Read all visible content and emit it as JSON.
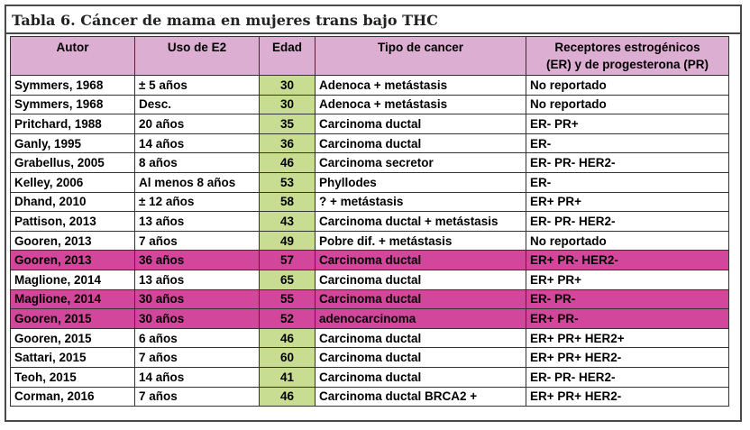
{
  "title": "Tabla 6. Cáncer de mama en mujeres trans bajo THC",
  "headers": {
    "autor": "Autor",
    "uso": "Uso de E2",
    "edad": "Edad",
    "tipo": "Tipo de cancer",
    "receptores_line1": "Receptores estrogénicos",
    "receptores_line2": "(ER) y de progesterona (PR)"
  },
  "colors": {
    "header_bg": "#dcaed2",
    "edad_bg": "#c9dd92",
    "highlight_bg": "#d2479b"
  },
  "rows": [
    {
      "autor": "Symmers, 1968",
      "uso": "± 5 años",
      "edad": "30",
      "tipo": "Adenoca  + metástasis",
      "receptores": "No reportado",
      "highlight": false
    },
    {
      "autor": "Symmers, 1968",
      "uso": "Desc.",
      "edad": "30",
      "tipo": "Adenoca  + metástasis",
      "receptores": "No reportado",
      "highlight": false
    },
    {
      "autor": "Pritchard,  1988",
      "uso": "20 años",
      "edad": "35",
      "tipo": "Carcinoma ductal",
      "receptores": "ER- PR+",
      "highlight": false
    },
    {
      "autor": "Ganly,  1995",
      "uso": "14 años",
      "edad": "36",
      "tipo": "Carcinoma ductal",
      "receptores": "ER-",
      "highlight": false
    },
    {
      "autor": "Grabellus, 2005",
      "uso": "8 años",
      "edad": "46",
      "tipo": "Carcinoma secretor",
      "receptores": "ER- PR- HER2-",
      "highlight": false
    },
    {
      "autor": "Kelley, 2006",
      "uso": "Al menos 8 años",
      "edad": "53",
      "tipo": "Phyllodes",
      "receptores": "ER-",
      "highlight": false
    },
    {
      "autor": "Dhand, 2010",
      "uso": "± 12 años",
      "edad": "58",
      "tipo": "? + metástasis",
      "receptores": "ER+ PR+",
      "highlight": false
    },
    {
      "autor": "Pattison, 2013",
      "uso": "13 años",
      "edad": "43",
      "tipo": "Carcinoma ductal + metástasis",
      "receptores": "ER- PR- HER2-",
      "highlight": false
    },
    {
      "autor": "Gooren,  2013",
      "uso": "7 años",
      "edad": "49",
      "tipo": "Pobre dif. + metástasis",
      "receptores": "No reportado",
      "highlight": false
    },
    {
      "autor": "Gooren,  2013",
      "uso": "36 años",
      "edad": "57",
      "tipo": "Carcinoma ductal",
      "receptores": "ER+ PR- HER2-",
      "highlight": true
    },
    {
      "autor": "Maglione, 2014",
      "uso": "13 años",
      "edad": "65",
      "tipo": "Carcinoma ductal",
      "receptores": "ER+ PR+",
      "highlight": false
    },
    {
      "autor": "Maglione, 2014",
      "uso": "30 años",
      "edad": "55",
      "tipo": "Carcinoma ductal",
      "receptores": "ER- PR-",
      "highlight": true
    },
    {
      "autor": "Gooren,  2015",
      "uso": "30 años",
      "edad": "52",
      "tipo": "adenocarcinoma",
      "receptores": "ER+ PR-",
      "highlight": true
    },
    {
      "autor": "Gooren,  2015",
      "uso": "6 años",
      "edad": "46",
      "tipo": "Carcinoma ductal",
      "receptores": "ER+ PR+ HER2+",
      "highlight": false
    },
    {
      "autor": "Sattari, 2015",
      "uso": "7 años",
      "edad": "60",
      "tipo": "Carcinoma ductal",
      "receptores": "ER+ PR+ HER2-",
      "highlight": false
    },
    {
      "autor": "Teoh, 2015",
      "uso": "14 años",
      "edad": "41",
      "tipo": "Carcinoma ductal",
      "receptores": "ER- PR- HER2-",
      "highlight": false
    },
    {
      "autor": "Corman, 2016",
      "uso": "7 años",
      "edad": "46",
      "tipo": "Carcinoma ductal BRCA2 +",
      "receptores": "ER+ PR+ HER2-",
      "highlight": false
    }
  ]
}
